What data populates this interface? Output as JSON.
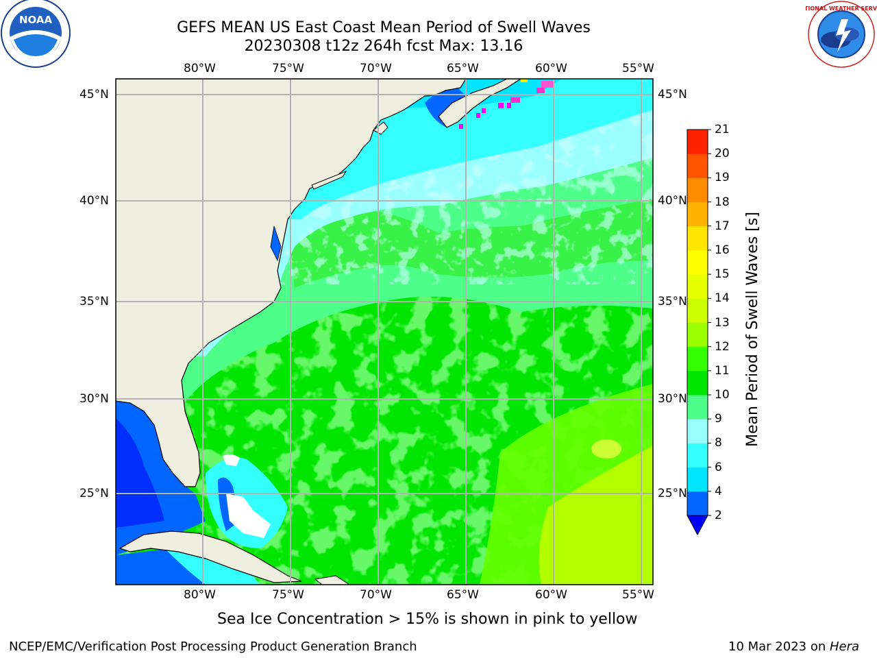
{
  "title": {
    "line1": "GEFS MEAN US East Coast Mean Period of Swell Waves",
    "line2": "20230308 t12z 264h fcst   Max: 13.16"
  },
  "map": {
    "lon_labels": [
      "80°W",
      "75°W",
      "70°W",
      "65°W",
      "60°W",
      "55°W"
    ],
    "lat_labels": [
      "45°N",
      "40°N",
      "35°N",
      "30°N",
      "25°N"
    ]
  },
  "colorbar": {
    "title": "Mean Period of Swell Waves [s]",
    "levels": [
      "2",
      "4",
      "6",
      "8",
      "9",
      "10",
      "11",
      "12",
      "13",
      "14",
      "15",
      "16",
      "17",
      "18",
      "19",
      "20",
      "21"
    ],
    "colors": [
      "#0066ff",
      "#00e5ff",
      "#33ffff",
      "#99ffff",
      "#4dff88",
      "#00e600",
      "#33ff00",
      "#99ff00",
      "#ccff00",
      "#e6ff00",
      "#ffff00",
      "#ffe600",
      "#ffb300",
      "#ff8c00",
      "#ff5500",
      "#ff2200"
    ],
    "under_color": "#0000ff"
  },
  "caption": "Sea Ice Concentration > 15% is shown in pink to yellow",
  "footer": {
    "left": "NCEP/EMC/Verification Post Processing Product Generation Branch",
    "date": "10 Mar 2023 on ",
    "machine": "Hera"
  },
  "logos": {
    "noaa_text": "NOAA",
    "nws_text": "NATIONAL WEATHER SERVICE"
  }
}
